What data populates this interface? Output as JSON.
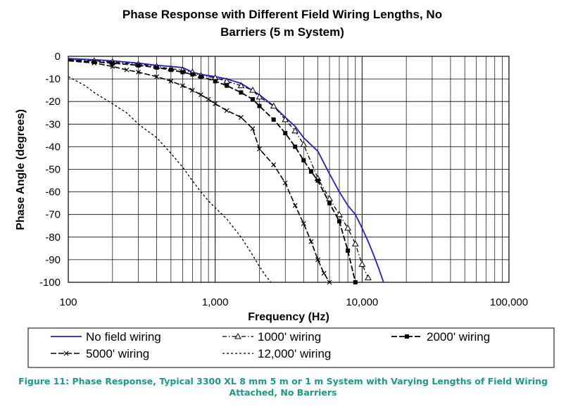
{
  "caption": "Figure 11: Phase Response, Typical 3300 XL 8 mm 5 m or 1 m System with Varying Lengths of Field Wiring Attached, No Barriers",
  "chart_data": {
    "type": "line",
    "title_lines": [
      "Phase Response with Different Field Wiring Lengths, No",
      "Barriers   (5 m System)"
    ],
    "xlabel": "Frequency (Hz)",
    "ylabel": "Phase Angle (degrees)",
    "xscale": "log",
    "xlim": [
      100,
      100000
    ],
    "ylim": [
      -100,
      0
    ],
    "xticks": [
      100,
      1000,
      10000,
      100000
    ],
    "xtick_labels": [
      "100",
      "1,000",
      "10,000",
      "100,000"
    ],
    "yticks": [
      0,
      -10,
      -20,
      -30,
      -40,
      -50,
      -60,
      -70,
      -80,
      -90,
      -100
    ],
    "ytick_labels": [
      "0",
      "-10",
      "-20",
      "-30",
      "-40",
      "-50",
      "-60",
      "-70",
      "-80",
      "-90",
      "-100"
    ],
    "grid": true,
    "legend_position": "bottom",
    "series": [
      {
        "name": "No field wiring",
        "style": "solid-blue",
        "color": "#1f1fd6",
        "x": [
          100,
          150,
          200,
          300,
          400,
          500,
          600,
          700,
          800,
          1000,
          1200,
          1500,
          2000,
          2500,
          3000,
          3500,
          4000,
          5000,
          6000,
          7000,
          8000,
          9000,
          10000,
          11000,
          12000,
          13000,
          14000
        ],
        "y": [
          -1,
          -1.5,
          -2,
          -3,
          -4,
          -4.5,
          -5,
          -7,
          -8,
          -9,
          -10,
          -12,
          -17,
          -22,
          -27,
          -31,
          -36,
          -42,
          -52,
          -60,
          -66,
          -70,
          -76,
          -82,
          -88,
          -94,
          -100
        ]
      },
      {
        "name": "1000' wiring",
        "style": "dash-dot-triangle",
        "color": "#000000",
        "x": [
          100,
          150,
          200,
          300,
          400,
          500,
          600,
          700,
          800,
          1000,
          1200,
          1500,
          1800,
          2000,
          2500,
          3000,
          3500,
          4000,
          5000,
          6000,
          7000,
          8000,
          9000,
          10000,
          11000
        ],
        "y": [
          -1.5,
          -2,
          -2.5,
          -3.5,
          -4.5,
          -5.5,
          -6,
          -7,
          -8.5,
          -9.5,
          -11,
          -13,
          -15,
          -18,
          -22,
          -28,
          -33,
          -39,
          -54,
          -63,
          -70,
          -76,
          -83,
          -92,
          -98
        ]
      },
      {
        "name": "2000' wiring",
        "style": "longdash-square",
        "color": "#000000",
        "x": [
          100,
          150,
          200,
          300,
          400,
          500,
          600,
          700,
          800,
          1000,
          1200,
          1500,
          1800,
          2000,
          2500,
          3000,
          3500,
          4000,
          4500,
          5000,
          6000,
          7000,
          8000,
          9000
        ],
        "y": [
          -1.5,
          -2.5,
          -3,
          -4,
          -5,
          -6,
          -7,
          -8,
          -9,
          -11,
          -13,
          -16,
          -19,
          -22,
          -28,
          -34,
          -40,
          -46,
          -51,
          -55,
          -65,
          -73,
          -86,
          -100
        ]
      },
      {
        "name": "5000' wiring",
        "style": "longdash-x",
        "color": "#000000",
        "x": [
          100,
          150,
          200,
          250,
          300,
          400,
          500,
          600,
          700,
          800,
          900,
          1000,
          1200,
          1500,
          1800,
          2000,
          2500,
          3000,
          3500,
          4000,
          4500,
          5000,
          5500,
          6000
        ],
        "y": [
          -2,
          -3,
          -4.5,
          -6,
          -7,
          -9,
          -11,
          -13,
          -15,
          -17,
          -19,
          -21,
          -24,
          -27,
          -32,
          -41,
          -48,
          -56,
          -66,
          -74,
          -82,
          -90,
          -96,
          -100
        ]
      },
      {
        "name": "12,000' wiring",
        "style": "short-dash",
        "color": "#000000",
        "x": [
          100,
          130,
          150,
          200,
          250,
          300,
          400,
          500,
          600,
          700,
          800,
          900,
          1000,
          1200,
          1500,
          1800,
          2000,
          2200,
          2400
        ],
        "y": [
          -9,
          -13,
          -16,
          -21,
          -25,
          -30,
          -36,
          -43,
          -49,
          -55,
          -60,
          -64,
          -67,
          -72,
          -80,
          -88,
          -93,
          -97,
          -100
        ]
      }
    ]
  }
}
